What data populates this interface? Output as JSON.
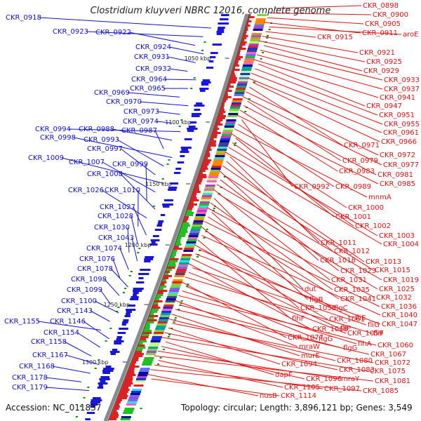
{
  "title": "Clostridium kluyveri NBRC 12016, complete genome",
  "footer": {
    "accession": "Accession: NC_011837",
    "stats": "Topology: circular; Length: 3,896,121 bp; Genes: 3,549"
  },
  "colors": {
    "left": "#1010d0",
    "right": "#e01010",
    "backbone": "#8a8a8a"
  },
  "kbp_markers": [
    "1050 kbp",
    "1100 kbp",
    "1150 kbp",
    "1200 kbp",
    "1250 kbp",
    "1300 kbp"
  ],
  "left_labels": [
    "CKR_0918",
    "CKR_0923",
    "CKR_0922",
    "CKR_0924",
    "CKR_0931",
    "CKR_0932",
    "CKR_0964",
    "CKR_0965",
    "CKR_0969",
    "CKR_0970",
    "CKR_0973",
    "CKR_0974",
    "CKR_0994",
    "CKR_0988",
    "CKR_0987",
    "CKR_0998",
    "CKR_0993",
    "CKR_0997",
    "CKR_1009",
    "CKR_1007",
    "CKR_0999",
    "CKR_1008",
    "CKR_1026",
    "CKR_1010",
    "CKR_1027",
    "CKR_1028",
    "CKR_1030",
    "CKR_1043",
    "CKR_1074",
    "CKR_1076",
    "CKR_1078",
    "CKR_1098",
    "CKR_1099",
    "CKR_1100",
    "CKR_1143",
    "CKR_1155",
    "CKR_1146",
    "CKR_1154",
    "CKR_1158",
    "CKR_1167",
    "CKR_1168",
    "CKR_1178",
    "CKR_1179"
  ],
  "right_labels": [
    "CKR_0898",
    "CKR_0900",
    "CKR_0905",
    "CKR_0911",
    "aroE",
    "CKR_0915",
    "CKR_0921",
    "CKR_0925",
    "CKR_0929",
    "CKR_0933",
    "CKR_0937",
    "CKR_0941",
    "CKR_0947",
    "CKR_0951",
    "CKR_0955",
    "CKR_0961",
    "CKR_0966",
    "CKR_0971",
    "CKR_0972",
    "CKR_0977",
    "CKR_0979",
    "CKR_0981",
    "CKR_0983",
    "CKR_0985",
    "CKR_0992",
    "CKR_0989",
    "mnmA",
    "CKR_1000",
    "CKR_1001",
    "CKR_1002",
    "CKR_1003",
    "CKR_1004",
    "CKR_1011",
    "CKR_1012",
    "CKR_1013",
    "CKR_1018",
    "CKR_1015",
    "CKR_1023",
    "CKR_1019",
    "CKR_1031",
    "CKR_1025",
    "dut",
    "CKR_1035",
    "CKR_1032",
    "flgB",
    "CKR_1041",
    "CKR_1036",
    "CKR_1058",
    "flgC",
    "CKR_1040",
    "flhF",
    "CKR_1061",
    "fliE",
    "CKR_1047",
    "fliP",
    "CKR_1068",
    "fliG",
    "CKR_1059",
    "fliF",
    "CKR_1077",
    "flgG",
    "flhA",
    "CKR_1060",
    "mraW",
    "flgG",
    "CKR_1067",
    "murE",
    "CKR_1080",
    "CKR_1072",
    "CKR_1094",
    "CKR_1083",
    "CKR_1075",
    "dapF",
    "CKR_1096",
    "mraY",
    "CKR_1081",
    "CKR_1105",
    "CKR_1097",
    "CKR_1085",
    "nusB",
    "CKR_1114"
  ]
}
